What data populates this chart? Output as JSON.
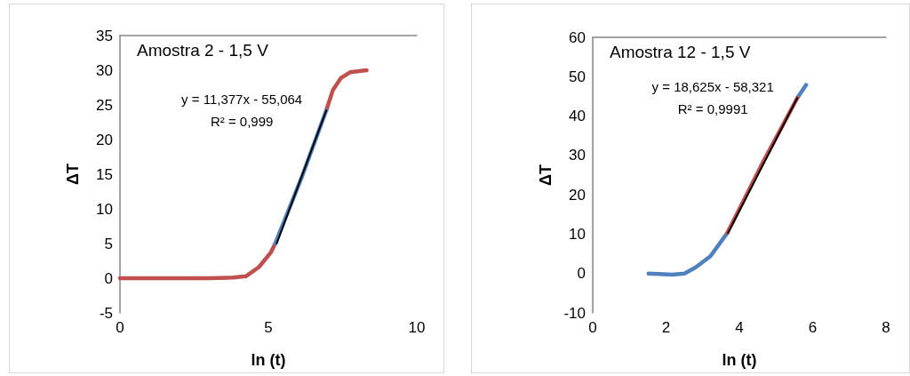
{
  "chart_data": [
    {
      "type": "line",
      "title": "Amostra 2 - 1,5 V",
      "xlabel": "ln (t)",
      "ylabel": "ΔT",
      "xlim": [
        0,
        10
      ],
      "xticks": [
        0,
        5,
        10
      ],
      "ylim": [
        -5,
        35
      ],
      "yticks": [
        -5,
        0,
        5,
        10,
        15,
        20,
        25,
        30,
        35
      ],
      "grid": false,
      "marker": "none",
      "line_style": "solid",
      "annotations": [
        "y = 11,377x - 55,064",
        "R² = 0,999"
      ],
      "series": [
        {
          "color": "#c0504d",
          "x": [
            0,
            1,
            2,
            3,
            3.8,
            4.25,
            4.68,
            5.08,
            5.23,
            6,
            6.95,
            7.17,
            7.45,
            7.75,
            8.31
          ],
          "values": [
            0,
            0,
            0,
            0,
            0.1,
            0.3,
            1.6,
            3.7,
            5,
            null,
            24.2,
            27.1,
            28.9,
            29.7,
            30
          ]
        },
        {
          "color": "#4f81bd",
          "x": [
            5.23,
            6.1,
            6.95
          ],
          "values": [
            5,
            14.3,
            24.2
          ]
        },
        {
          "color": "#000000",
          "x": [
            5.28,
            6.95
          ],
          "values": [
            5,
            24.2
          ]
        }
      ]
    },
    {
      "type": "line",
      "title": "Amostra 12 - 1,5 V",
      "xlabel": "ln (t)",
      "ylabel": "ΔT",
      "xlim": [
        0,
        8
      ],
      "xticks": [
        0,
        2,
        4,
        6,
        8
      ],
      "ylim": [
        -10,
        60
      ],
      "yticks": [
        -10,
        0,
        10,
        20,
        30,
        40,
        50,
        60
      ],
      "grid": false,
      "marker": "none",
      "line_style": "solid",
      "annotations": [
        "y = 18,625x - 58,321",
        "R² = 0,9991"
      ],
      "series": [
        {
          "color": "#4f81bd",
          "x": [
            1.52,
            1.8,
            2.17,
            2.5,
            2.8,
            3.21,
            3.67,
            4.6,
            5.58,
            5.82
          ],
          "values": [
            0,
            -0.1,
            -0.3,
            0,
            1.5,
            4.4,
            10.3,
            null,
            44.6,
            47.9
          ]
        },
        {
          "color": "#c0504d",
          "x": [
            3.67,
            4.6,
            5.58
          ],
          "values": [
            10.3,
            27.5,
            44.6
          ]
        },
        {
          "color": "#000000",
          "x": [
            3.69,
            5.58
          ],
          "values": [
            10.3,
            44.6
          ]
        }
      ]
    }
  ]
}
